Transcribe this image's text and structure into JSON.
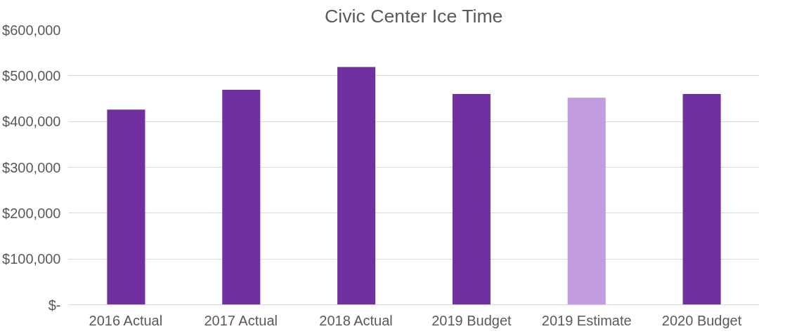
{
  "chart_data": {
    "type": "bar",
    "title": "Civic Center Ice Time",
    "categories": [
      "2016 Actual",
      "2017 Actual",
      "2018 Actual",
      "2019 Budget",
      "2019 Estimate",
      "2020 Budget"
    ],
    "values": [
      426000,
      469000,
      519000,
      460000,
      452000,
      460000
    ],
    "colors": [
      "#7030a0",
      "#7030a0",
      "#7030a0",
      "#7030a0",
      "#c39be1",
      "#7030a0"
    ],
    "ylim": [
      0,
      600000
    ],
    "yticks": [
      {
        "value": 0,
        "label": "$-"
      },
      {
        "value": 100000,
        "label": "$100,000"
      },
      {
        "value": 200000,
        "label": "$200,000"
      },
      {
        "value": 300000,
        "label": "$300,000"
      },
      {
        "value": 400000,
        "label": "$400,000"
      },
      {
        "value": 500000,
        "label": "$500,000"
      },
      {
        "value": 600000,
        "label": "$600,000"
      }
    ],
    "grid": "y"
  }
}
